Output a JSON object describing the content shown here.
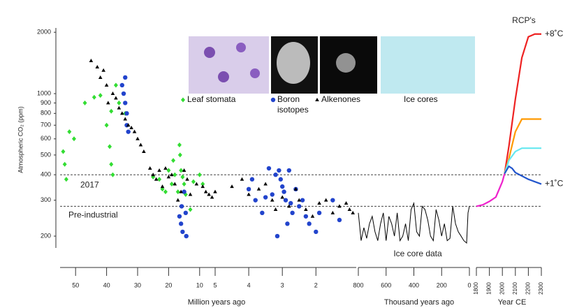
{
  "chart_data": [
    {
      "type": "scatter",
      "ylabel": "Atmospheric CO₂ (ppm)",
      "yscale": "log",
      "ylim": [
        175,
        2100
      ],
      "yticks": [
        200,
        300,
        400,
        500,
        600,
        700,
        800,
        900,
        1000,
        2000
      ],
      "xlim": [
        55,
        5
      ],
      "xticks": [
        50,
        40,
        30,
        20,
        10,
        5
      ],
      "xlabel": "Million years ago",
      "reference_lines": [
        {
          "value": 400,
          "label": "2017"
        },
        {
          "value": 280,
          "label": "Pre-industrial"
        }
      ],
      "series": [
        {
          "name": "Leaf stomata",
          "color": "#33dd33",
          "marker": "diamond",
          "x": [
            54,
            53.5,
            53,
            52,
            50.5,
            47,
            44,
            42,
            40,
            39,
            38.5,
            38.5,
            38,
            37,
            36,
            34,
            25,
            23,
            22,
            21,
            20,
            19,
            18.5,
            18,
            17,
            16.5,
            16.3,
            16,
            15.5,
            15,
            14.5,
            13,
            12,
            10,
            9
          ],
          "values": [
            520,
            450,
            380,
            650,
            600,
            900,
            960,
            980,
            700,
            550,
            820,
            450,
            400,
            1100,
            900,
            800,
            390,
            380,
            340,
            330,
            420,
            360,
            470,
            400,
            330,
            560,
            500,
            420,
            390,
            360,
            320,
            270,
            370,
            400,
            360
          ]
        },
        {
          "name": "Boron isotopes",
          "color": "#2244cc",
          "marker": "circle",
          "x": [
            35,
            34.5,
            34,
            34,
            33.5,
            33,
            33.5,
            16.5,
            16,
            15.5,
            15.8,
            15,
            14.5,
            14.3
          ],
          "values": [
            1100,
            1000,
            1200,
            900,
            700,
            650,
            800,
            250,
            230,
            210,
            280,
            330,
            260,
            200
          ]
        },
        {
          "name": "Alkenones",
          "color": "#000000",
          "marker": "triangle",
          "x": [
            45,
            43,
            42,
            41,
            40,
            39.5,
            38,
            37,
            36,
            35,
            34,
            33,
            32,
            31,
            30,
            29,
            28,
            26,
            25,
            24,
            23,
            22,
            21,
            20,
            19,
            18,
            17,
            16,
            15,
            14,
            13,
            11,
            9,
            8,
            7,
            6,
            5
          ],
          "values": [
            1450,
            1350,
            1200,
            1300,
            1100,
            900,
            1000,
            950,
            850,
            800,
            750,
            700,
            680,
            650,
            600,
            560,
            520,
            430,
            400,
            380,
            420,
            350,
            430,
            390,
            400,
            360,
            300,
            330,
            420,
            380,
            320,
            360,
            350,
            330,
            320,
            310,
            330
          ]
        }
      ]
    },
    {
      "type": "scatter",
      "yscale": "log",
      "ylim": [
        175,
        2100
      ],
      "xlim": [
        5,
        0.8
      ],
      "xticks": [
        4,
        3,
        2
      ],
      "series": [
        {
          "color": "#2244cc",
          "marker": "circle",
          "x": [
            4,
            3.9,
            3.8,
            3.5,
            3.3,
            3.2,
            3.1,
            3.05,
            3,
            2.95,
            2.9,
            2.8,
            2.75,
            2.7,
            2.6,
            2.5,
            2.4,
            2.3,
            2.2,
            2,
            1.9,
            1.5,
            1.3,
            3.4,
            2.85,
            3.6,
            3.15
          ],
          "values": [
            340,
            380,
            300,
            310,
            320,
            400,
            420,
            380,
            350,
            330,
            300,
            420,
            290,
            260,
            340,
            280,
            300,
            250,
            230,
            210,
            260,
            300,
            240,
            430,
            230,
            260,
            200
          ]
        },
        {
          "color": "#000000",
          "marker": "triangle",
          "x": [
            4.5,
            4.2,
            4,
            3.7,
            3.5,
            3.3,
            3.2,
            3,
            2.8,
            2.6,
            2.5,
            2.3,
            2.1,
            1.9,
            1.7,
            1.5,
            1.3,
            1.1,
            1,
            0.9
          ],
          "values": [
            350,
            380,
            320,
            340,
            360,
            300,
            270,
            310,
            280,
            340,
            300,
            270,
            250,
            290,
            300,
            260,
            280,
            290,
            270,
            260
          ]
        }
      ]
    },
    {
      "type": "line",
      "yscale": "log",
      "ylim": [
        175,
        2100
      ],
      "xlim": [
        800,
        0
      ],
      "xticks": [
        800,
        600,
        400,
        200,
        0
      ],
      "xlabel": "Thousand years ago",
      "annotation": "Ice core data",
      "series": [
        {
          "name": "Ice cores",
          "color": "#000000",
          "x": [
            800,
            780,
            760,
            740,
            720,
            700,
            680,
            660,
            640,
            620,
            600,
            580,
            560,
            540,
            520,
            500,
            480,
            460,
            440,
            420,
            400,
            380,
            360,
            340,
            320,
            300,
            280,
            260,
            240,
            220,
            200,
            180,
            160,
            140,
            120,
            100,
            80,
            60,
            40,
            20,
            10,
            0
          ],
          "values": [
            260,
            190,
            220,
            195,
            230,
            250,
            210,
            190,
            230,
            260,
            190,
            250,
            230,
            200,
            260,
            190,
            200,
            230,
            190,
            270,
            290,
            210,
            200,
            280,
            270,
            240,
            200,
            190,
            270,
            240,
            200,
            230,
            190,
            195,
            280,
            230,
            210,
            200,
            190,
            185,
            260,
            280
          ]
        }
      ]
    },
    {
      "type": "line",
      "title": "RCP's",
      "yscale": "log",
      "ylim": [
        175,
        2100
      ],
      "xlim": [
        1800,
        2300
      ],
      "xticks": [
        1800,
        1900,
        2000,
        2100,
        2200,
        2300
      ],
      "xlabel": "Year CE",
      "series": [
        {
          "color": "#ee22cc",
          "x": [
            1800,
            1850,
            1900,
            1950,
            2000,
            2017
          ],
          "values": [
            280,
            285,
            296,
            311,
            370,
            405
          ]
        },
        {
          "color": "#ee2222",
          "label": "+8˚C",
          "x": [
            2017,
            2050,
            2100,
            2150,
            2200,
            2250,
            2300
          ],
          "values": [
            405,
            550,
            940,
            1500,
            1900,
            1960,
            1960
          ]
        },
        {
          "color": "#ff9900",
          "x": [
            2017,
            2050,
            2100,
            2150,
            2200,
            2300
          ],
          "values": [
            405,
            480,
            650,
            750,
            750,
            750
          ]
        },
        {
          "color": "#66e8f0",
          "x": [
            2017,
            2050,
            2100,
            2150,
            2300
          ],
          "values": [
            405,
            470,
            520,
            540,
            540
          ]
        },
        {
          "color": "#2255cc",
          "label": "+1˚C",
          "x": [
            2017,
            2050,
            2075,
            2100,
            2200,
            2300
          ],
          "values": [
            405,
            440,
            430,
            410,
            380,
            360
          ]
        }
      ]
    }
  ]
}
